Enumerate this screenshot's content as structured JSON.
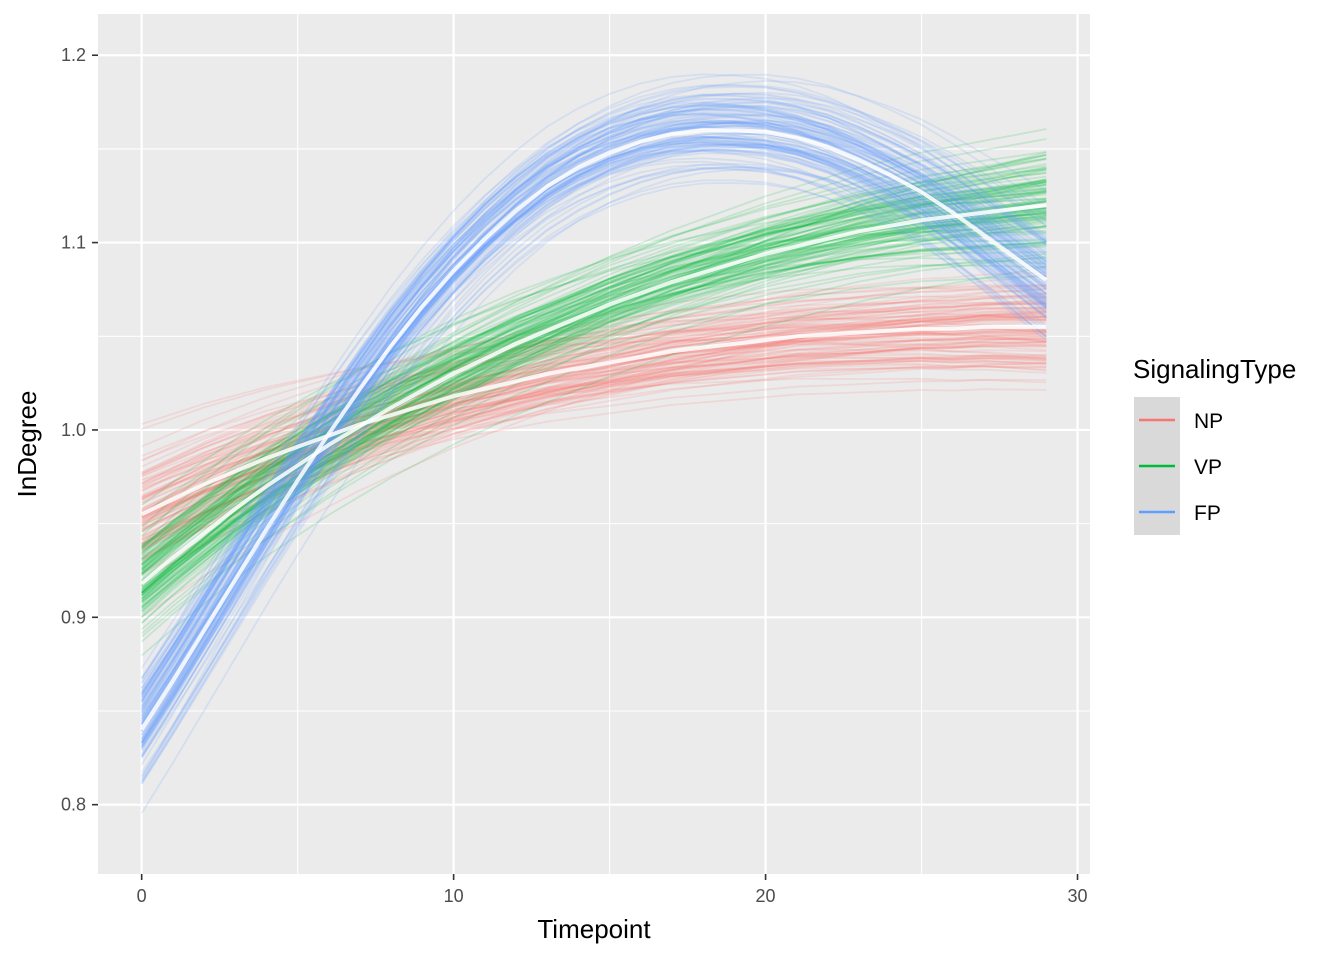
{
  "chart_data": {
    "type": "line",
    "title": "",
    "xlabel": "Timepoint",
    "ylabel": "InDegree",
    "xlim": [
      -1.4,
      30.4
    ],
    "ylim": [
      0.763,
      1.222
    ],
    "x_ticks": [
      0,
      10,
      20,
      30
    ],
    "x_tick_labels": [
      "0",
      "10",
      "20",
      "30"
    ],
    "y_ticks": [
      0.8,
      0.9,
      1.0,
      1.1,
      1.2
    ],
    "y_tick_labels": [
      "0.8",
      "0.9",
      "1.0",
      "1.1",
      "1.2"
    ],
    "x_minor_ticks": [
      5,
      15,
      25
    ],
    "y_minor_ticks": [
      0.85,
      0.95,
      1.05,
      1.15
    ],
    "legend": {
      "title": "SignalingType",
      "position": "right",
      "entries": [
        "NP",
        "VP",
        "FP"
      ]
    },
    "x": [
      0,
      1,
      2,
      3,
      4,
      5,
      6,
      7,
      8,
      9,
      10,
      11,
      12,
      13,
      14,
      15,
      16,
      17,
      18,
      19,
      20,
      21,
      22,
      23,
      24,
      25,
      26,
      27,
      28,
      29
    ],
    "series": [
      {
        "name": "NP",
        "color": "#F8766D",
        "mean_values": [
          0.955,
          0.963,
          0.971,
          0.978,
          0.985,
          0.991,
          0.997,
          1.003,
          1.008,
          1.013,
          1.018,
          1.022,
          1.026,
          1.03,
          1.033,
          1.036,
          1.039,
          1.042,
          1.044,
          1.046,
          1.048,
          1.05,
          1.051,
          1.052,
          1.053,
          1.054,
          1.054,
          1.055,
          1.055,
          1.055
        ],
        "band_spread_start": 0.035,
        "band_spread_end": 0.03
      },
      {
        "name": "VP",
        "color": "#00BA38",
        "mean_values": [
          0.918,
          0.932,
          0.945,
          0.958,
          0.97,
          0.981,
          0.992,
          1.002,
          1.012,
          1.021,
          1.03,
          1.038,
          1.046,
          1.053,
          1.06,
          1.067,
          1.073,
          1.079,
          1.084,
          1.089,
          1.094,
          1.098,
          1.102,
          1.106,
          1.109,
          1.112,
          1.114,
          1.116,
          1.118,
          1.12
        ],
        "band_spread_start": 0.03,
        "band_spread_end": 0.035
      },
      {
        "name": "FP",
        "color": "#619CFF",
        "mean_values": [
          0.84,
          0.866,
          0.893,
          0.92,
          0.947,
          0.973,
          0.998,
          1.022,
          1.045,
          1.066,
          1.085,
          1.102,
          1.117,
          1.13,
          1.14,
          1.148,
          1.154,
          1.158,
          1.16,
          1.16,
          1.159,
          1.156,
          1.151,
          1.144,
          1.136,
          1.127,
          1.116,
          1.104,
          1.092,
          1.08
        ],
        "band_spread_start": 0.035,
        "band_spread_end": 0.035
      }
    ]
  }
}
